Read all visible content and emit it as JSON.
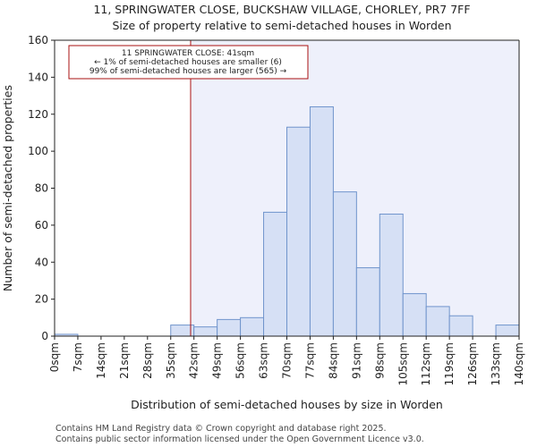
{
  "chart_data": {
    "type": "bar",
    "title": "11, SPRINGWATER CLOSE, BUCKSHAW VILLAGE, CHORLEY, PR7 7FF",
    "subtitle": "Size of property relative to semi-detached houses in Worden",
    "xlabel": "Distribution of semi-detached houses by size in Worden",
    "ylabel": "Number of semi-detached properties",
    "x_ticks": [
      "0sqm",
      "7sqm",
      "14sqm",
      "21sqm",
      "28sqm",
      "35sqm",
      "42sqm",
      "49sqm",
      "56sqm",
      "63sqm",
      "70sqm",
      "77sqm",
      "84sqm",
      "91sqm",
      "98sqm",
      "105sqm",
      "112sqm",
      "119sqm",
      "126sqm",
      "133sqm",
      "140sqm"
    ],
    "bin_edges": [
      0,
      7,
      14,
      21,
      28,
      35,
      42,
      49,
      56,
      63,
      70,
      77,
      84,
      91,
      98,
      105,
      112,
      119,
      126,
      133,
      140
    ],
    "values": [
      1,
      0,
      0,
      0,
      0,
      6,
      5,
      9,
      10,
      67,
      113,
      124,
      78,
      37,
      66,
      23,
      16,
      11,
      0,
      6
    ],
    "xlim": [
      0,
      140
    ],
    "ylim": [
      0,
      160
    ],
    "y_ticks": [
      0,
      20,
      40,
      60,
      80,
      100,
      120,
      140,
      160
    ],
    "marker_x": 41,
    "bar_color": "#d6e0f5",
    "bar_edge_color": "#7094cc",
    "marker_color": "#aa1111",
    "highlight_color": "#eef0fb",
    "annotation": {
      "line1": "11 SPRINGWATER CLOSE: 41sqm",
      "line2": "← 1% of semi-detached houses are smaller (6)",
      "line3": "99% of semi-detached houses are larger (565) →"
    },
    "grid": false
  },
  "footer": {
    "line1": "Contains HM Land Registry data © Crown copyright and database right 2025.",
    "line2": "Contains public sector information licensed under the Open Government Licence v3.0."
  }
}
